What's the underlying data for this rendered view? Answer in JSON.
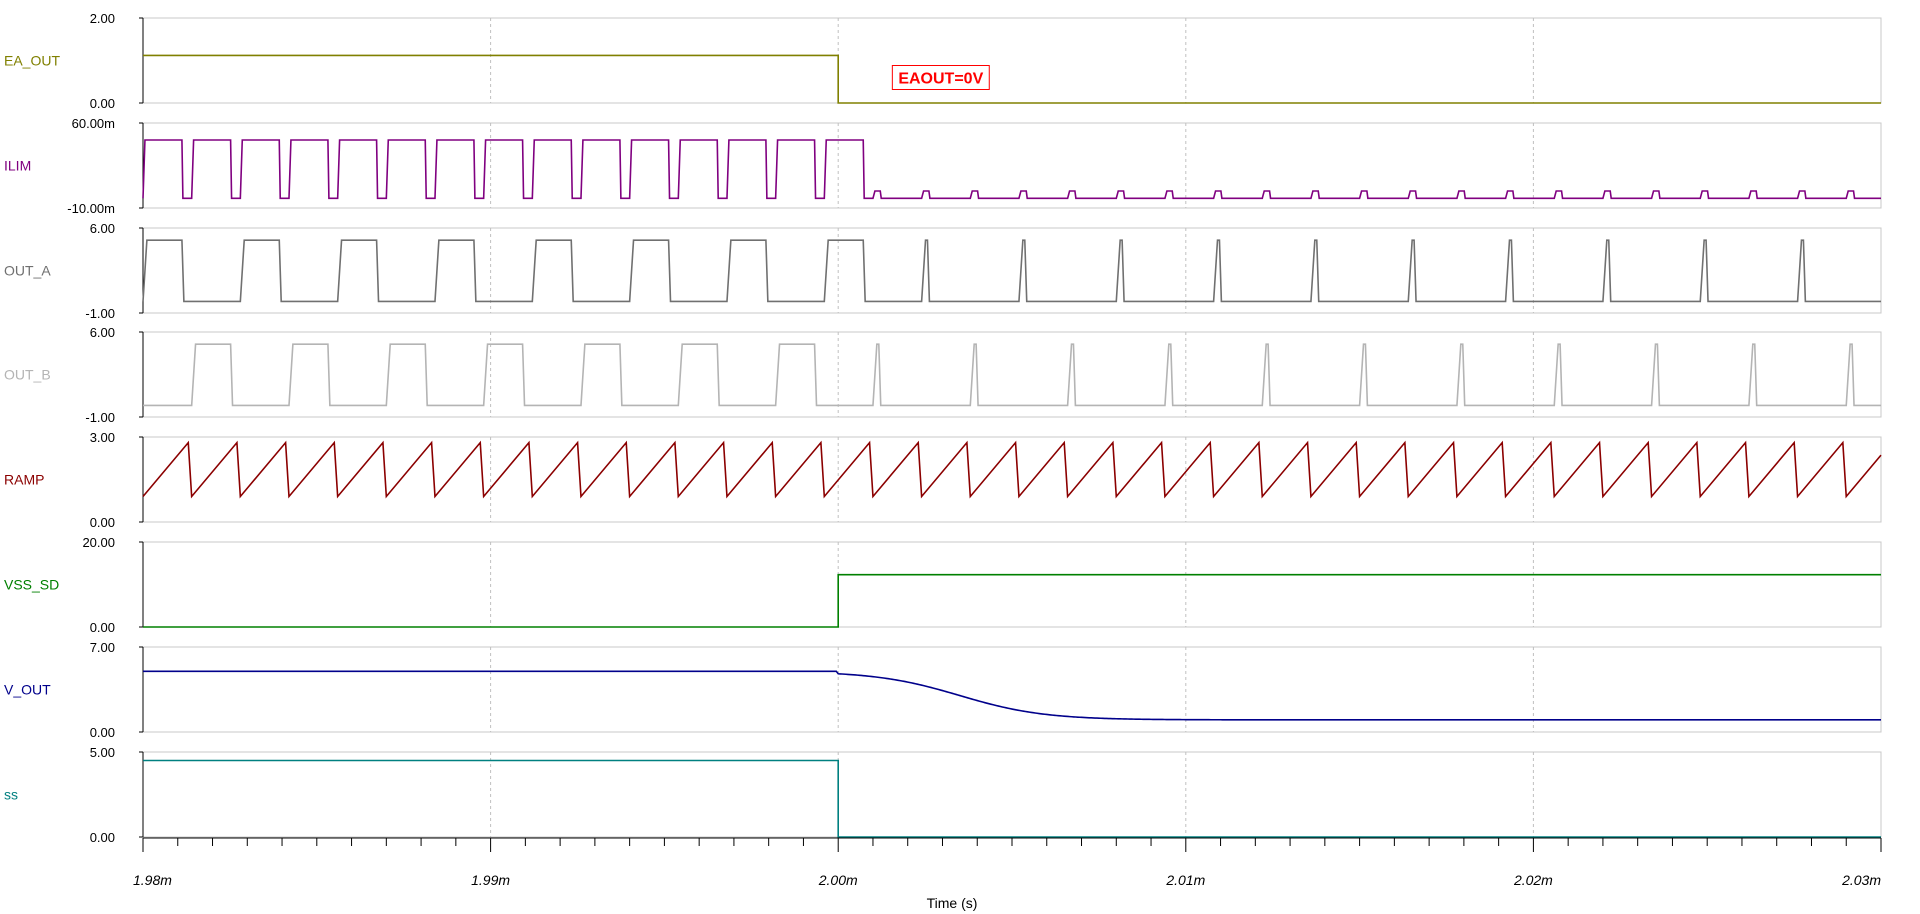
{
  "chart_data": {
    "type": "line",
    "xlabel": "Time (s)",
    "x_range_ms": [
      1.98,
      2.03
    ],
    "x_ticks": [
      {
        "value": 1.98,
        "label": "1.98m"
      },
      {
        "value": 1.99,
        "label": "1.99m"
      },
      {
        "value": 2.0,
        "label": "2.00m"
      },
      {
        "value": 2.01,
        "label": "2.01m"
      },
      {
        "value": 2.02,
        "label": "2.02m"
      },
      {
        "value": 2.03,
        "label": "2.03m"
      }
    ],
    "grid": "vertical-dashed",
    "event_time_ms": 2.0,
    "annotation": {
      "text": "EAOUT=0V",
      "x_ms": 2.0015,
      "y": 0.6,
      "trace": "EA_OUT",
      "color": "#ff0000"
    },
    "traces": [
      {
        "name": "EA_OUT",
        "color": "#808000",
        "ylim": [
          0,
          2
        ],
        "ytick_labels": [
          "2.00",
          "0.00"
        ],
        "kind": "step",
        "before": 1.12,
        "after": 0.0
      },
      {
        "name": "ILIM",
        "color": "#800080",
        "ylim": [
          -0.01,
          0.06
        ],
        "ytick_labels": [
          "60.00m",
          "-10.00m"
        ],
        "kind": "pulse",
        "period_ms": 0.0014,
        "low": -0.002,
        "high_before": 0.046,
        "high_after": 0.004,
        "duty_before": 0.8
      },
      {
        "name": "OUT_A",
        "color": "#707070",
        "ylim": [
          -1,
          6
        ],
        "ytick_labels": [
          "6.00",
          "-1.00"
        ],
        "kind": "pulse",
        "period_ms": 0.0028,
        "phase": 0.0,
        "low": -0.05,
        "high": 5.0,
        "duty_before": 0.4,
        "duty_after": 0.06
      },
      {
        "name": "OUT_B",
        "color": "#b4b4b4",
        "ylim": [
          -1,
          6
        ],
        "ytick_labels": [
          "6.00",
          "-1.00"
        ],
        "kind": "pulse",
        "period_ms": 0.0028,
        "phase": 0.5,
        "low": -0.05,
        "high": 5.0,
        "duty_before": 0.4,
        "duty_after": 0.06
      },
      {
        "name": "RAMP",
        "color": "#8b0000",
        "ylim": [
          0,
          3
        ],
        "ytick_labels": [
          "3.00",
          "0.00"
        ],
        "kind": "sawtooth",
        "period_ms": 0.0014,
        "low": 0.9,
        "high": 2.8
      },
      {
        "name": "VSS_SD",
        "color": "#008000",
        "ylim": [
          0,
          20
        ],
        "ytick_labels": [
          "20.00",
          "0.00"
        ],
        "kind": "step",
        "before": 0.0,
        "after": 12.3
      },
      {
        "name": "V_OUT",
        "color": "#00008b",
        "ylim": [
          0,
          7
        ],
        "ytick_labels": [
          "7.00",
          "0.00"
        ],
        "kind": "decay",
        "before": 5.0,
        "after": 1.0,
        "tau_ms": 0.0022
      },
      {
        "name": "ss",
        "color": "#008080",
        "ylim": [
          0,
          5
        ],
        "ytick_labels": [
          "5.00",
          "0.00"
        ],
        "kind": "step",
        "before": 4.5,
        "after": 0.0
      }
    ]
  }
}
